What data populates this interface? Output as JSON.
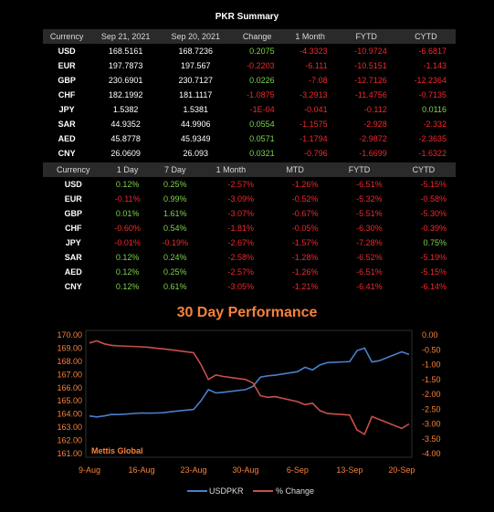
{
  "title": "PKR Summary",
  "table1": {
    "headers": [
      "Currency",
      "Sep 21, 2021",
      "Sep 20, 2021",
      "Change",
      "1 Month",
      "FYTD",
      "CYTD"
    ],
    "rows": [
      {
        "cur": "USD",
        "cells": [
          "168.5161",
          "168.7236",
          "0.2075",
          "-4.3323",
          "-10.9724",
          "-6.6817"
        ]
      },
      {
        "cur": "EUR",
        "cells": [
          "197.7873",
          "197.567",
          "-0.2203",
          "-6.111",
          "-10.5151",
          "-1.143"
        ]
      },
      {
        "cur": "GBP",
        "cells": [
          "230.6901",
          "230.7127",
          "0.0226",
          "-7.08",
          "-12.7126",
          "-12.2364"
        ]
      },
      {
        "cur": "CHF",
        "cells": [
          "182.1992",
          "181.1117",
          "-1.0875",
          "-3.2913",
          "-11.4756",
          "-0.7135"
        ]
      },
      {
        "cur": "JPY",
        "cells": [
          "1.5382",
          "1.5381",
          "-1E-04",
          "-0.041",
          "-0.112",
          "0.0116"
        ]
      },
      {
        "cur": "SAR",
        "cells": [
          "44.9352",
          "44.9906",
          "0.0554",
          "-1.1575",
          "-2.928",
          "-2.332"
        ]
      },
      {
        "cur": "AED",
        "cells": [
          "45.8778",
          "45.9349",
          "0.0571",
          "-1.1794",
          "-2.9872",
          "-2.3635"
        ]
      },
      {
        "cur": "CNY",
        "cells": [
          "26.0609",
          "26.093",
          "0.0321",
          "-0.796",
          "-1.6699",
          "-1.6322"
        ]
      }
    ]
  },
  "table2": {
    "headers": [
      "Currency",
      "1 Day",
      "7 Day",
      "1 Month",
      "MTD",
      "FYTD",
      "CYTD"
    ],
    "rows": [
      {
        "cur": "USD",
        "cells": [
          "0.12%",
          "0.25%",
          "-2.57%",
          "-1.26%",
          "-6.51%",
          "-5.15%"
        ]
      },
      {
        "cur": "EUR",
        "cells": [
          "-0.11%",
          "0.99%",
          "-3.09%",
          "-0.52%",
          "-5.32%",
          "-0.58%"
        ]
      },
      {
        "cur": "GBP",
        "cells": [
          "0.01%",
          "1.61%",
          "-3.07%",
          "-0.67%",
          "-5.51%",
          "-5.30%"
        ]
      },
      {
        "cur": "CHF",
        "cells": [
          "-0.60%",
          "0.54%",
          "-1.81%",
          "-0.05%",
          "-6.30%",
          "-0.39%"
        ]
      },
      {
        "cur": "JPY",
        "cells": [
          "-0.01%",
          "-0.19%",
          "-2.67%",
          "-1.57%",
          "-7.28%",
          "0.75%"
        ]
      },
      {
        "cur": "SAR",
        "cells": [
          "0.12%",
          "0.24%",
          "-2.58%",
          "-1.28%",
          "-6.52%",
          "-5.19%"
        ]
      },
      {
        "cur": "AED",
        "cells": [
          "0.12%",
          "0.25%",
          "-2.57%",
          "-1.26%",
          "-6.51%",
          "-5.15%"
        ]
      },
      {
        "cur": "CNY",
        "cells": [
          "0.12%",
          "0.61%",
          "-3.05%",
          "-1.21%",
          "-6.41%",
          "-6.14%"
        ]
      }
    ]
  },
  "colors": {
    "positive": "#7fd24c",
    "negative": "#f0282d",
    "accent": "#f6823c",
    "usd_line": "#4a7fc8",
    "pct_line": "#c9504a"
  },
  "chart_data": {
    "type": "line",
    "title": "30 Day Performance",
    "watermark": "Mettis Global",
    "x": [
      "2021-08-09",
      "2021-08-10",
      "2021-08-11",
      "2021-08-12",
      "2021-08-13",
      "2021-08-16",
      "2021-08-17",
      "2021-08-18",
      "2021-08-19",
      "2021-08-20",
      "2021-08-23",
      "2021-08-24",
      "2021-08-25",
      "2021-08-26",
      "2021-08-27",
      "2021-08-30",
      "2021-08-31",
      "2021-09-01",
      "2021-09-02",
      "2021-09-03",
      "2021-09-06",
      "2021-09-07",
      "2021-09-08",
      "2021-09-09",
      "2021-09-10",
      "2021-09-13",
      "2021-09-14",
      "2021-09-15",
      "2021-09-16",
      "2021-09-17",
      "2021-09-20",
      "2021-09-21"
    ],
    "x_tick_labels": [
      "9-Aug",
      "16-Aug",
      "23-Aug",
      "30-Aug",
      "6-Sep",
      "13-Sep",
      "20-Sep"
    ],
    "x_tick_dates": [
      "2021-08-09",
      "2021-08-16",
      "2021-08-23",
      "2021-08-30",
      "2021-09-06",
      "2021-09-13",
      "2021-09-20"
    ],
    "series": [
      {
        "name": "USDPKR",
        "axis": "left",
        "color": "#4a7fc8",
        "values": [
          163.85,
          163.78,
          163.86,
          163.97,
          163.96,
          164.08,
          164.07,
          164.08,
          164.1,
          164.18,
          164.35,
          165.0,
          165.85,
          165.6,
          165.65,
          165.85,
          166.1,
          166.8,
          166.9,
          166.95,
          167.22,
          167.55,
          167.35,
          167.72,
          167.9,
          167.98,
          168.8,
          169.0,
          167.95,
          168.05,
          168.72,
          168.52
        ]
      },
      {
        "name": "% Change",
        "axis": "right",
        "color": "#c9504a",
        "values": [
          -0.27,
          -0.2,
          -0.3,
          -0.35,
          -0.37,
          -0.4,
          -0.42,
          -0.45,
          -0.47,
          -0.5,
          -0.6,
          -1.0,
          -1.5,
          -1.35,
          -1.4,
          -1.5,
          -1.62,
          -2.05,
          -2.1,
          -2.08,
          -2.25,
          -2.35,
          -2.3,
          -2.55,
          -2.65,
          -2.7,
          -3.2,
          -3.35,
          -2.75,
          -2.85,
          -3.15,
          -3.0
        ]
      }
    ],
    "ylim_left": [
      161,
      170
    ],
    "yticks_left": [
      "170.00",
      "169.00",
      "168.00",
      "167.00",
      "166.00",
      "165.00",
      "164.00",
      "163.00",
      "162.00",
      "161.00"
    ],
    "ylim_right": [
      -4,
      0
    ],
    "yticks_right": [
      "0.00",
      "-0.50",
      "-1.00",
      "-1.50",
      "-2.00",
      "-2.50",
      "-3.00",
      "-3.50",
      "-4.00"
    ],
    "legend": [
      "USDPKR",
      "% Change"
    ],
    "legend_position": "bottom",
    "grid": false
  }
}
